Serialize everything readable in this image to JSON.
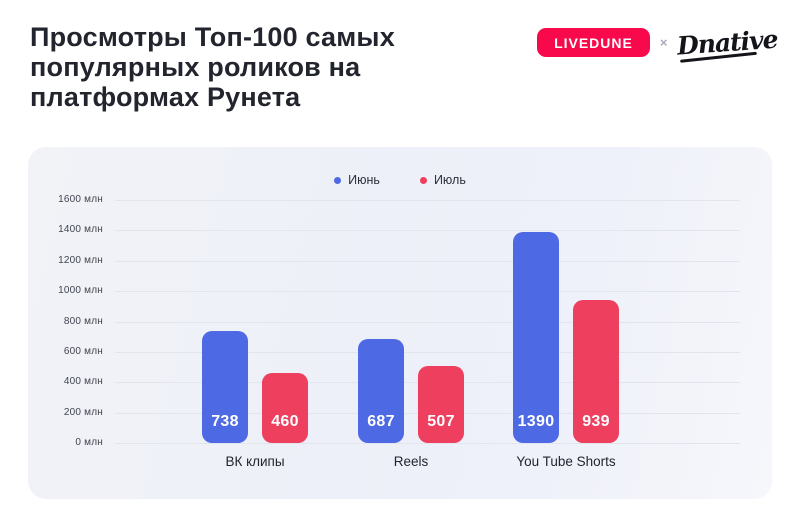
{
  "header": {
    "title": "Просмотры Топ-100 самых\nпопулярных роликов на\nплатформах Рунета",
    "logos": {
      "livedune_label": "LIVEDUNE",
      "separator": "×",
      "dnative_label": "Dnative"
    }
  },
  "colors": {
    "livedune_badge": "#f8094b",
    "june_bar": "#4e69e4",
    "july_bar": "#ee3f5e",
    "card_background": "#eff1f8",
    "title_text": "#23252e"
  },
  "chart_data": {
    "type": "bar",
    "title": "",
    "categories": [
      "ВК клипы",
      "Reels",
      "You Tube Shorts"
    ],
    "series": [
      {
        "name": "Июнь",
        "color": "#4e69e4",
        "values": [
          738,
          687,
          1390
        ]
      },
      {
        "name": "Июль",
        "color": "#ee3f5e",
        "values": [
          460,
          507,
          939
        ]
      }
    ],
    "xlabel": "",
    "ylabel": "",
    "ylim": [
      0,
      1600
    ],
    "yticks": [
      0,
      200,
      400,
      600,
      800,
      1000,
      1200,
      1400,
      1600
    ],
    "ytick_suffix": " млн",
    "grid": true,
    "legend_position": "top-center",
    "bar_labels": true
  }
}
